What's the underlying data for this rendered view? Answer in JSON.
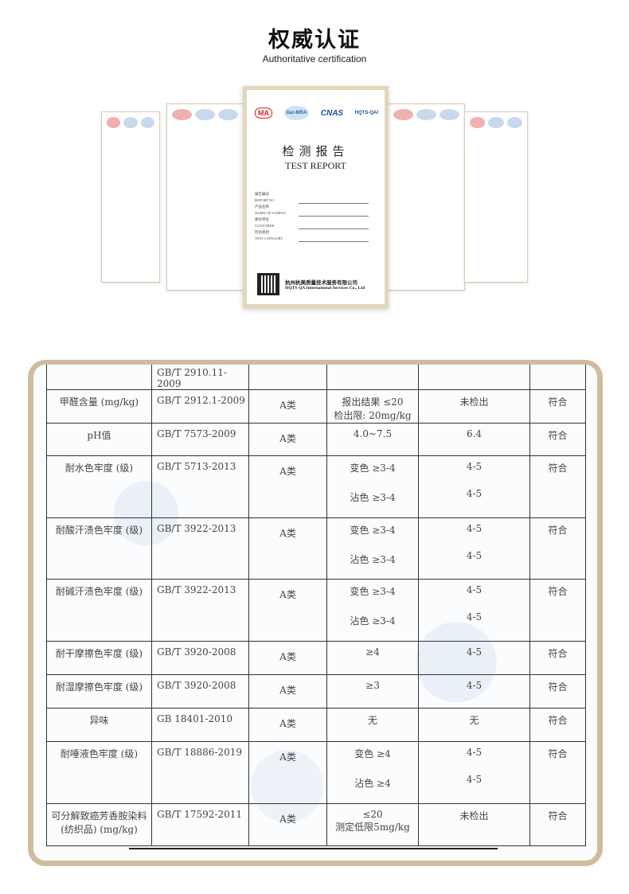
{
  "header": {
    "title": "权威认证",
    "subtitle": "Authoritative certification"
  },
  "report": {
    "title_cn": "检测报告",
    "title_en": "TEST REPORT",
    "logos": [
      "MA",
      "ilac-MRA",
      "CNAS",
      "HQTS-QAI"
    ],
    "fields": [
      {
        "cn": "报告编号",
        "en": "REPORT NO"
      },
      {
        "cn": "产品名称",
        "en": "NAME OF SAMPLE"
      },
      {
        "cn": "委托单位",
        "en": "CUSTOMER"
      },
      {
        "cn": "检验类别",
        "en": "TEST CATEGORY"
      }
    ],
    "company_cn": "杭州杭美质量技术服务有限公司",
    "company_en": "HQTS QA International Services Co., Ltd"
  },
  "table": {
    "rows": [
      {
        "item": "",
        "standard": "GB/T 2910.11-2009",
        "grade": "",
        "requirement": "",
        "result": "",
        "verdict": ""
      },
      {
        "item": "甲醛含量 (mg/kg)",
        "standard": "GB/T 2912.1-2009",
        "grade": "A类",
        "requirement": "报出结果 ≤20",
        "requirement2": "检出限: 20mg/kg",
        "result": "未检出",
        "verdict": "符合"
      },
      {
        "item": "pH值",
        "standard": "GB/T 7573-2009",
        "grade": "A类",
        "requirement": "4.0~7.5",
        "result": "6.4",
        "verdict": "符合"
      },
      {
        "item": "耐水色牢度 (级)",
        "standard": "GB/T 5713-2013",
        "grade": "A类",
        "requirement": "变色 ≥3-4",
        "result": "4-5",
        "requirement2": "沾色 ≥3-4",
        "result2": "4-5",
        "verdict": "符合"
      },
      {
        "item": "耐酸汗渍色牢度 (级)",
        "standard": "GB/T 3922-2013",
        "grade": "A类",
        "requirement": "变色 ≥3-4",
        "result": "4-5",
        "requirement2": "沾色 ≥3-4",
        "result2": "4-5",
        "verdict": "符合"
      },
      {
        "item": "耐碱汗渍色牢度 (级)",
        "standard": "GB/T 3922-2013",
        "grade": "A类",
        "requirement": "变色 ≥3-4",
        "result": "4-5",
        "requirement2": "沾色 ≥3-4",
        "result2": "4-5",
        "verdict": "符合"
      },
      {
        "item": "耐干摩擦色牢度 (级)",
        "standard": "GB/T 3920-2008",
        "grade": "A类",
        "requirement": "≥4",
        "result": "4-5",
        "verdict": "符合"
      },
      {
        "item": "耐湿摩擦色牢度 (级)",
        "standard": "GB/T 3920-2008",
        "grade": "A类",
        "requirement": "≥3",
        "result": "4-5",
        "verdict": "符合"
      },
      {
        "item": "异味",
        "standard": "GB 18401-2010",
        "grade": "A类",
        "requirement": "无",
        "result": "无",
        "verdict": "符合"
      },
      {
        "item": "耐唾液色牢度 (级)",
        "standard": "GB/T 18886-2019",
        "grade": "A类",
        "requirement": "变色 ≥4",
        "result": "4-5",
        "requirement2": "沾色 ≥4",
        "result2": "4-5",
        "verdict": "符合"
      },
      {
        "item": "可分解致癌芳香胺染料 (纺织品) (mg/kg)",
        "standard": "GB/T 17592-2011",
        "grade": "A类",
        "requirement": "≤20",
        "requirement2": "测定低限5mg/kg",
        "result": "未检出",
        "verdict": "符合"
      }
    ]
  },
  "colors": {
    "frame": "#cdbd9d",
    "table_line": "#333333"
  }
}
